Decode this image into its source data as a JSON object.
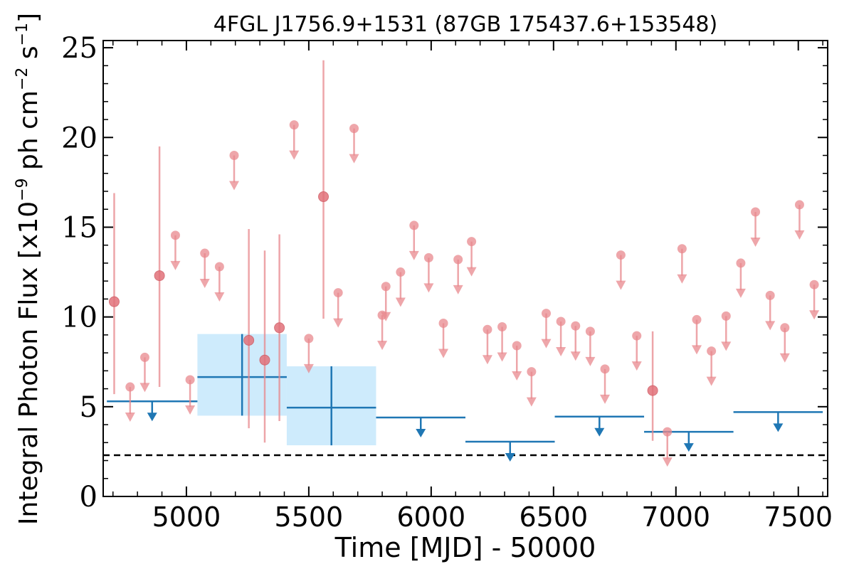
{
  "chart_data": {
    "type": "scatter",
    "title": "4FGL J1756.9+1531 (87GB 175437.6+153548)",
    "xlabel": "Time [MJD] - 50000",
    "ylabel_main": "Integral Photon Flux [x10",
    "ylabel_exp1": "−9",
    "ylabel_mid": " ph cm",
    "ylabel_exp2": "−2",
    "ylabel_mid2": " s",
    "ylabel_exp3": "−1",
    "ylabel_end": "]",
    "xlim": [
      4660,
      7620
    ],
    "ylim": [
      0,
      25.4
    ],
    "xticks": [
      5000,
      5500,
      6000,
      6500,
      7000,
      7500
    ],
    "xtick_labels": [
      "5000",
      "5500",
      "6000",
      "6500",
      "7000",
      "7500"
    ],
    "yticks": [
      0,
      5,
      10,
      15,
      20,
      25
    ],
    "ytick_labels": [
      "0",
      "5",
      "10",
      "15",
      "20",
      "25"
    ],
    "reference_level": 2.3,
    "colors": {
      "short_bins": "#e8888d",
      "long_bins": "#1f77b4",
      "long_band": "#b3e0fa",
      "reference": "#000000"
    },
    "short_detections": [
      {
        "x": 4705,
        "y": 10.85,
        "ylo": 5.7,
        "yhi": 16.9
      },
      {
        "x": 4890,
        "y": 12.3,
        "ylo": 6.1,
        "yhi": 19.5
      },
      {
        "x": 5255,
        "y": 8.7,
        "ylo": 3.8,
        "yhi": 14.9
      },
      {
        "x": 5320,
        "y": 7.6,
        "ylo": 3.0,
        "yhi": 13.7
      },
      {
        "x": 5380,
        "y": 9.4,
        "ylo": 4.2,
        "yhi": 14.6
      },
      {
        "x": 5560,
        "y": 16.7,
        "ylo": 9.9,
        "yhi": 24.3
      },
      {
        "x": 6905,
        "y": 5.9,
        "ylo": 3.1,
        "yhi": 9.2
      }
    ],
    "short_upper_limits": [
      {
        "x": 4770,
        "y": 6.1
      },
      {
        "x": 4830,
        "y": 7.75
      },
      {
        "x": 4955,
        "y": 14.55
      },
      {
        "x": 5015,
        "y": 6.5
      },
      {
        "x": 5075,
        "y": 13.55
      },
      {
        "x": 5135,
        "y": 12.8
      },
      {
        "x": 5195,
        "y": 19.0
      },
      {
        "x": 5440,
        "y": 20.7
      },
      {
        "x": 5500,
        "y": 8.8
      },
      {
        "x": 5620,
        "y": 11.35
      },
      {
        "x": 5685,
        "y": 20.5
      },
      {
        "x": 5800,
        "y": 10.1
      },
      {
        "x": 5815,
        "y": 11.7
      },
      {
        "x": 5875,
        "y": 12.5
      },
      {
        "x": 5930,
        "y": 15.1
      },
      {
        "x": 5990,
        "y": 13.3
      },
      {
        "x": 6050,
        "y": 9.65
      },
      {
        "x": 6110,
        "y": 13.2
      },
      {
        "x": 6165,
        "y": 14.2
      },
      {
        "x": 6230,
        "y": 9.3
      },
      {
        "x": 6290,
        "y": 9.45
      },
      {
        "x": 6350,
        "y": 8.4
      },
      {
        "x": 6410,
        "y": 6.95
      },
      {
        "x": 6470,
        "y": 10.2
      },
      {
        "x": 6530,
        "y": 9.75
      },
      {
        "x": 6590,
        "y": 9.5
      },
      {
        "x": 6650,
        "y": 9.2
      },
      {
        "x": 6710,
        "y": 7.1
      },
      {
        "x": 6775,
        "y": 13.45
      },
      {
        "x": 6840,
        "y": 8.95
      },
      {
        "x": 6965,
        "y": 3.6
      },
      {
        "x": 7025,
        "y": 13.8
      },
      {
        "x": 7085,
        "y": 9.85
      },
      {
        "x": 7145,
        "y": 8.1
      },
      {
        "x": 7205,
        "y": 10.05
      },
      {
        "x": 7265,
        "y": 13.0
      },
      {
        "x": 7325,
        "y": 15.85
      },
      {
        "x": 7385,
        "y": 11.2
      },
      {
        "x": 7445,
        "y": 9.4
      },
      {
        "x": 7505,
        "y": 16.25
      },
      {
        "x": 7565,
        "y": 11.8
      }
    ],
    "long_detections": [
      {
        "x0": 5045,
        "x1": 5410,
        "y": 6.65,
        "ylo": 4.5,
        "yhi": 9.05
      },
      {
        "x0": 5410,
        "x1": 5775,
        "y": 4.95,
        "ylo": 2.85,
        "yhi": 7.25
      }
    ],
    "long_upper_limits": [
      {
        "x0": 4675,
        "x1": 5045,
        "y": 5.3
      },
      {
        "x0": 5775,
        "x1": 6140,
        "y": 4.4
      },
      {
        "x0": 6140,
        "x1": 6505,
        "y": 3.05
      },
      {
        "x0": 6505,
        "x1": 6870,
        "y": 4.45
      },
      {
        "x0": 6870,
        "x1": 7235,
        "y": 3.6
      },
      {
        "x0": 7235,
        "x1": 7600,
        "y": 4.7
      }
    ]
  }
}
